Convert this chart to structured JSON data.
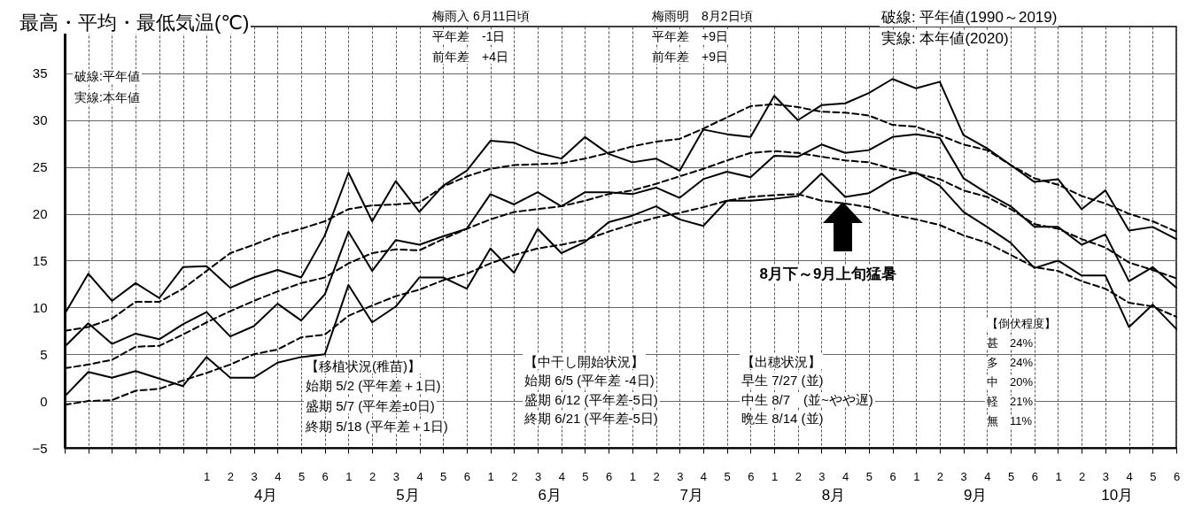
{
  "chart_data": {
    "type": "line",
    "title": "最高・平均・最低気温(℃)",
    "categories": [
      null,
      null,
      null,
      null,
      null,
      null,
      "1",
      "2",
      "3",
      "4",
      "5",
      "6",
      "1",
      "2",
      "3",
      "4",
      "5",
      "6",
      "1",
      "2",
      "3",
      "4",
      "5",
      "6",
      "1",
      "2",
      "3",
      "4",
      "5",
      "6",
      "1",
      "2",
      "3",
      "4",
      "5",
      "6",
      "1",
      "2",
      "3",
      "4",
      "5",
      "6",
      "1",
      "2",
      "3",
      "4",
      "5",
      "6"
    ],
    "series": [
      {
        "color": "#000000",
        "line_style": "solid",
        "values": [
          9.3,
          13.6,
          10.7,
          12.6,
          11.0,
          14.3,
          14.4,
          12.1,
          13.2,
          14.0,
          13.2,
          17.7,
          24.4,
          19.2,
          23.5,
          20.2,
          23.0,
          24.6,
          27.8,
          27.6,
          26.5,
          25.9,
          28.2,
          26.4,
          25.5,
          25.9,
          24.6,
          29.0,
          28.5,
          28.2,
          32.6,
          30.0,
          31.6,
          31.8,
          32.9,
          34.4,
          33.4,
          34.1,
          28.4,
          27.0,
          25.2,
          23.4,
          23.7,
          20.5,
          22.5,
          18.2,
          18.6,
          17.3
        ]
      },
      {
        "color": "#000000",
        "line_style": "dashed",
        "values": [
          7.5,
          7.9,
          8.8,
          10.6,
          10.6,
          12.0,
          13.9,
          15.8,
          16.7,
          17.7,
          18.4,
          19.2,
          20.5,
          20.9,
          21.0,
          21.2,
          22.9,
          24.0,
          24.8,
          25.2,
          25.3,
          25.4,
          25.9,
          26.5,
          27.2,
          27.7,
          28.0,
          29.1,
          30.3,
          31.5,
          31.7,
          31.4,
          30.9,
          30.8,
          30.5,
          29.5,
          29.3,
          28.4,
          27.4,
          26.8,
          25.2,
          23.8,
          23.1,
          21.9,
          21.1,
          20.0,
          19.2,
          18.1
        ]
      },
      {
        "color": "#000000",
        "line_style": "solid",
        "values": [
          5.8,
          8.3,
          6.1,
          7.2,
          6.6,
          8.2,
          9.5,
          6.9,
          8.0,
          10.4,
          8.6,
          11.4,
          18.1,
          13.9,
          17.2,
          16.7,
          17.6,
          18.4,
          22.1,
          21.0,
          22.3,
          20.8,
          22.3,
          22.3,
          22.1,
          22.8,
          21.7,
          23.7,
          24.5,
          23.9,
          26.2,
          26.1,
          27.4,
          26.5,
          26.8,
          28.2,
          28.5,
          28.1,
          23.8,
          22.2,
          20.8,
          18.6,
          18.6,
          16.7,
          17.8,
          12.8,
          14.3,
          12.1
        ]
      },
      {
        "color": "#000000",
        "line_style": "dashed",
        "values": [
          3.5,
          3.9,
          4.4,
          5.8,
          5.9,
          7.1,
          8.4,
          9.6,
          10.7,
          11.7,
          12.6,
          13.2,
          14.7,
          15.8,
          16.2,
          16.1,
          17.3,
          18.4,
          19.4,
          20.2,
          20.5,
          20.8,
          21.4,
          22.1,
          22.5,
          23.2,
          24.0,
          24.8,
          25.7,
          26.5,
          26.7,
          26.5,
          26.1,
          25.7,
          25.5,
          24.8,
          24.3,
          23.7,
          22.5,
          21.8,
          20.5,
          18.9,
          18.4,
          17.3,
          16.4,
          14.8,
          14.0,
          13.1
        ]
      },
      {
        "color": "#000000",
        "line_style": "solid",
        "values": [
          0.5,
          3.1,
          2.5,
          3.2,
          2.4,
          1.6,
          4.7,
          2.5,
          2.5,
          4.1,
          4.7,
          5.0,
          12.4,
          8.4,
          10.1,
          13.2,
          13.2,
          12.0,
          16.3,
          13.7,
          18.4,
          15.8,
          17.0,
          19.1,
          19.8,
          20.8,
          19.4,
          18.7,
          21.4,
          21.4,
          21.6,
          21.9,
          24.3,
          21.8,
          22.2,
          23.7,
          24.4,
          23.0,
          20.2,
          18.6,
          16.9,
          14.2,
          15.0,
          13.4,
          13.4,
          7.9,
          10.3,
          7.7
        ]
      },
      {
        "color": "#000000",
        "line_style": "dashed",
        "values": [
          -0.4,
          0.0,
          0.1,
          1.1,
          1.3,
          2.2,
          3.0,
          3.9,
          5.0,
          5.5,
          6.8,
          7.1,
          9.1,
          10.2,
          11.2,
          11.9,
          12.9,
          13.6,
          14.7,
          15.6,
          16.3,
          16.7,
          17.2,
          18.1,
          18.9,
          19.6,
          20.1,
          20.7,
          21.4,
          21.8,
          22.0,
          22.1,
          21.4,
          21.1,
          20.7,
          19.9,
          19.4,
          18.8,
          17.7,
          16.9,
          15.6,
          14.3,
          13.9,
          12.8,
          12.0,
          10.5,
          10.1,
          9.0
        ]
      }
    ],
    "ylim": [
      -5,
      40
    ],
    "yticks": [
      -5,
      0,
      5,
      10,
      15,
      20,
      25,
      30,
      35
    ],
    "grid": true,
    "annotations": [
      "梅雨入 6月11日頃",
      "平年差　-1日",
      "前年差　+4日",
      "梅雨明　8月2日頃",
      "平年差　+9日",
      "前年差　+9日",
      "破線: 平年値(1990～2019)",
      "実線: 本年値(2020)",
      "破線:平年値",
      "実線:本年値",
      "8月下～9月上旬猛暑",
      "【移植状況(稚苗)】",
      "始期 5/2 (平年差＋1日)",
      "盛期 5/7 (平年差±0日)",
      "終期 5/18 (平年差＋1日)",
      "【中干し開始状況】",
      "始期 6/5 (平年差 -4日)",
      "盛期 6/12 (平年差-5日)",
      "終期 6/21 (平年差-5日)",
      "【出穂状況】",
      "早生 7/27 (並)",
      "中生 8/7　(並~やや遅)",
      "晩生 8/14 (並)",
      "【倒伏程度】",
      "甚　24%",
      "多　24%",
      "中　20%",
      "軽　21%",
      "無　11%",
      "4月",
      "5月",
      "6月",
      "7月",
      "8月",
      "9月",
      "10月"
    ]
  }
}
